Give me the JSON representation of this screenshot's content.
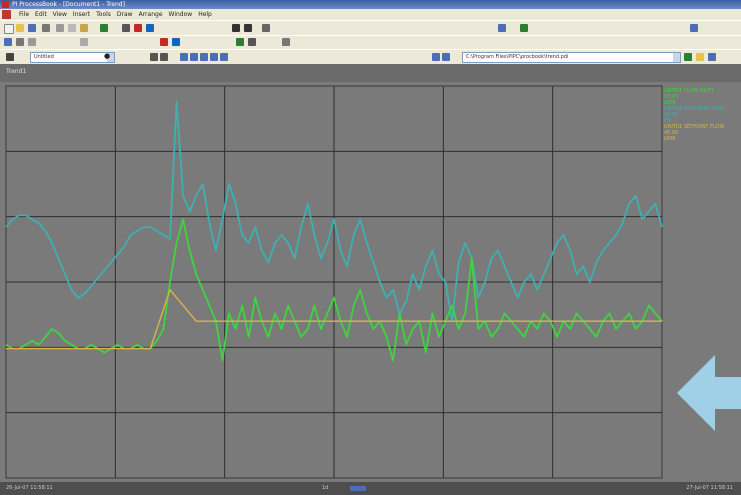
{
  "window": {
    "title": "PI ProcessBook - [Document1 - Trend]"
  },
  "menu": {
    "items": [
      "File",
      "Edit",
      "View",
      "Insert",
      "Tools",
      "Draw",
      "Arrange",
      "Window",
      "Help"
    ]
  },
  "toolbar": {
    "combo_left": "Untitled",
    "combo_right": "C:\\Program Files\\PIPC\\procbook\\trend.pdi",
    "active_dot": "●"
  },
  "panel": {
    "label": "Trend1"
  },
  "chart_data": {
    "type": "line",
    "title": "",
    "xlabel": "",
    "ylabel": "",
    "grid": true,
    "x_divisions": 6,
    "y_divisions": 6,
    "series": [
      {
        "color": "#3fb0b0",
        "values": [
          0.64,
          0.66,
          0.67,
          0.67,
          0.66,
          0.65,
          0.63,
          0.6,
          0.56,
          0.52,
          0.48,
          0.46,
          0.47,
          0.49,
          0.51,
          0.53,
          0.55,
          0.57,
          0.59,
          0.62,
          0.63,
          0.64,
          0.64,
          0.63,
          0.62,
          0.61,
          0.96,
          0.72,
          0.68,
          0.72,
          0.75,
          0.65,
          0.58,
          0.66,
          0.75,
          0.7,
          0.62,
          0.6,
          0.64,
          0.58,
          0.55,
          0.6,
          0.62,
          0.6,
          0.56,
          0.64,
          0.7,
          0.62,
          0.56,
          0.6,
          0.66,
          0.58,
          0.54,
          0.62,
          0.66,
          0.6,
          0.55,
          0.5,
          0.46,
          0.48,
          0.42,
          0.45,
          0.52,
          0.48,
          0.54,
          0.58,
          0.52,
          0.5,
          0.4,
          0.55,
          0.6,
          0.56,
          0.46,
          0.5,
          0.56,
          0.58,
          0.54,
          0.5,
          0.46,
          0.5,
          0.52,
          0.48,
          0.52,
          0.56,
          0.6,
          0.62,
          0.58,
          0.52,
          0.54,
          0.5,
          0.55,
          0.58,
          0.6,
          0.62,
          0.65,
          0.7,
          0.72,
          0.66,
          0.68,
          0.7,
          0.64
        ]
      },
      {
        "color": "#3fd43f",
        "values": [
          0.34,
          0.33,
          0.33,
          0.34,
          0.35,
          0.34,
          0.36,
          0.38,
          0.37,
          0.35,
          0.34,
          0.33,
          0.33,
          0.34,
          0.33,
          0.32,
          0.33,
          0.34,
          0.33,
          0.33,
          0.34,
          0.33,
          0.33,
          0.35,
          0.38,
          0.5,
          0.6,
          0.66,
          0.58,
          0.52,
          0.48,
          0.44,
          0.4,
          0.3,
          0.42,
          0.38,
          0.44,
          0.36,
          0.46,
          0.4,
          0.36,
          0.42,
          0.38,
          0.44,
          0.4,
          0.36,
          0.38,
          0.44,
          0.38,
          0.42,
          0.46,
          0.4,
          0.36,
          0.44,
          0.48,
          0.42,
          0.38,
          0.4,
          0.36,
          0.3,
          0.42,
          0.34,
          0.38,
          0.4,
          0.32,
          0.42,
          0.36,
          0.4,
          0.44,
          0.38,
          0.42,
          0.56,
          0.38,
          0.4,
          0.36,
          0.38,
          0.42,
          0.4,
          0.38,
          0.36,
          0.4,
          0.38,
          0.42,
          0.4,
          0.36,
          0.4,
          0.38,
          0.42,
          0.4,
          0.38,
          0.36,
          0.4,
          0.42,
          0.38,
          0.4,
          0.42,
          0.38,
          0.4,
          0.44,
          0.42,
          0.4
        ]
      },
      {
        "color": "#d8b548",
        "points": [
          [
            0,
            0.33
          ],
          [
            0.22,
            0.33
          ],
          [
            0.25,
            0.48
          ],
          [
            0.29,
            0.4
          ],
          [
            0.45,
            0.4
          ],
          [
            1,
            0.4
          ]
        ]
      }
    ]
  },
  "legend": {
    "entries": [
      {
        "color": "#3fd43f",
        "text": "UNIT01 FLOW INLET"
      },
      {
        "color": "#3fd43f",
        "text": "63.43"
      },
      {
        "color": "#3fd43f",
        "text": "GPM"
      },
      {
        "color": "#3fb0b0",
        "text": "UNIT01 PRESSURE TANK"
      },
      {
        "color": "#3fb0b0",
        "text": "58.85"
      },
      {
        "color": "#3fb0b0",
        "text": "PSI"
      },
      {
        "color": "#d8b548",
        "text": "UNIT01 SETPOINT FLOW"
      },
      {
        "color": "#d8b548",
        "text": "45.00"
      },
      {
        "color": "#d8b548",
        "text": "GPM"
      }
    ]
  },
  "status": {
    "start_time": "26-Jul-07 11:58:11",
    "time_range": "1d",
    "end_time": "27-Jul-07 11:58:11"
  },
  "colors": {
    "plot_bg": "#7a7a7a",
    "grid": "#2e2e2e",
    "arrow": "#9fd0e8"
  },
  "icons": [
    "app-icon",
    "new-icon",
    "open-icon",
    "save-icon",
    "print-icon",
    "cut-icon",
    "copy-icon",
    "paste-icon",
    "zoom-icon",
    "arrow-left-icon"
  ]
}
